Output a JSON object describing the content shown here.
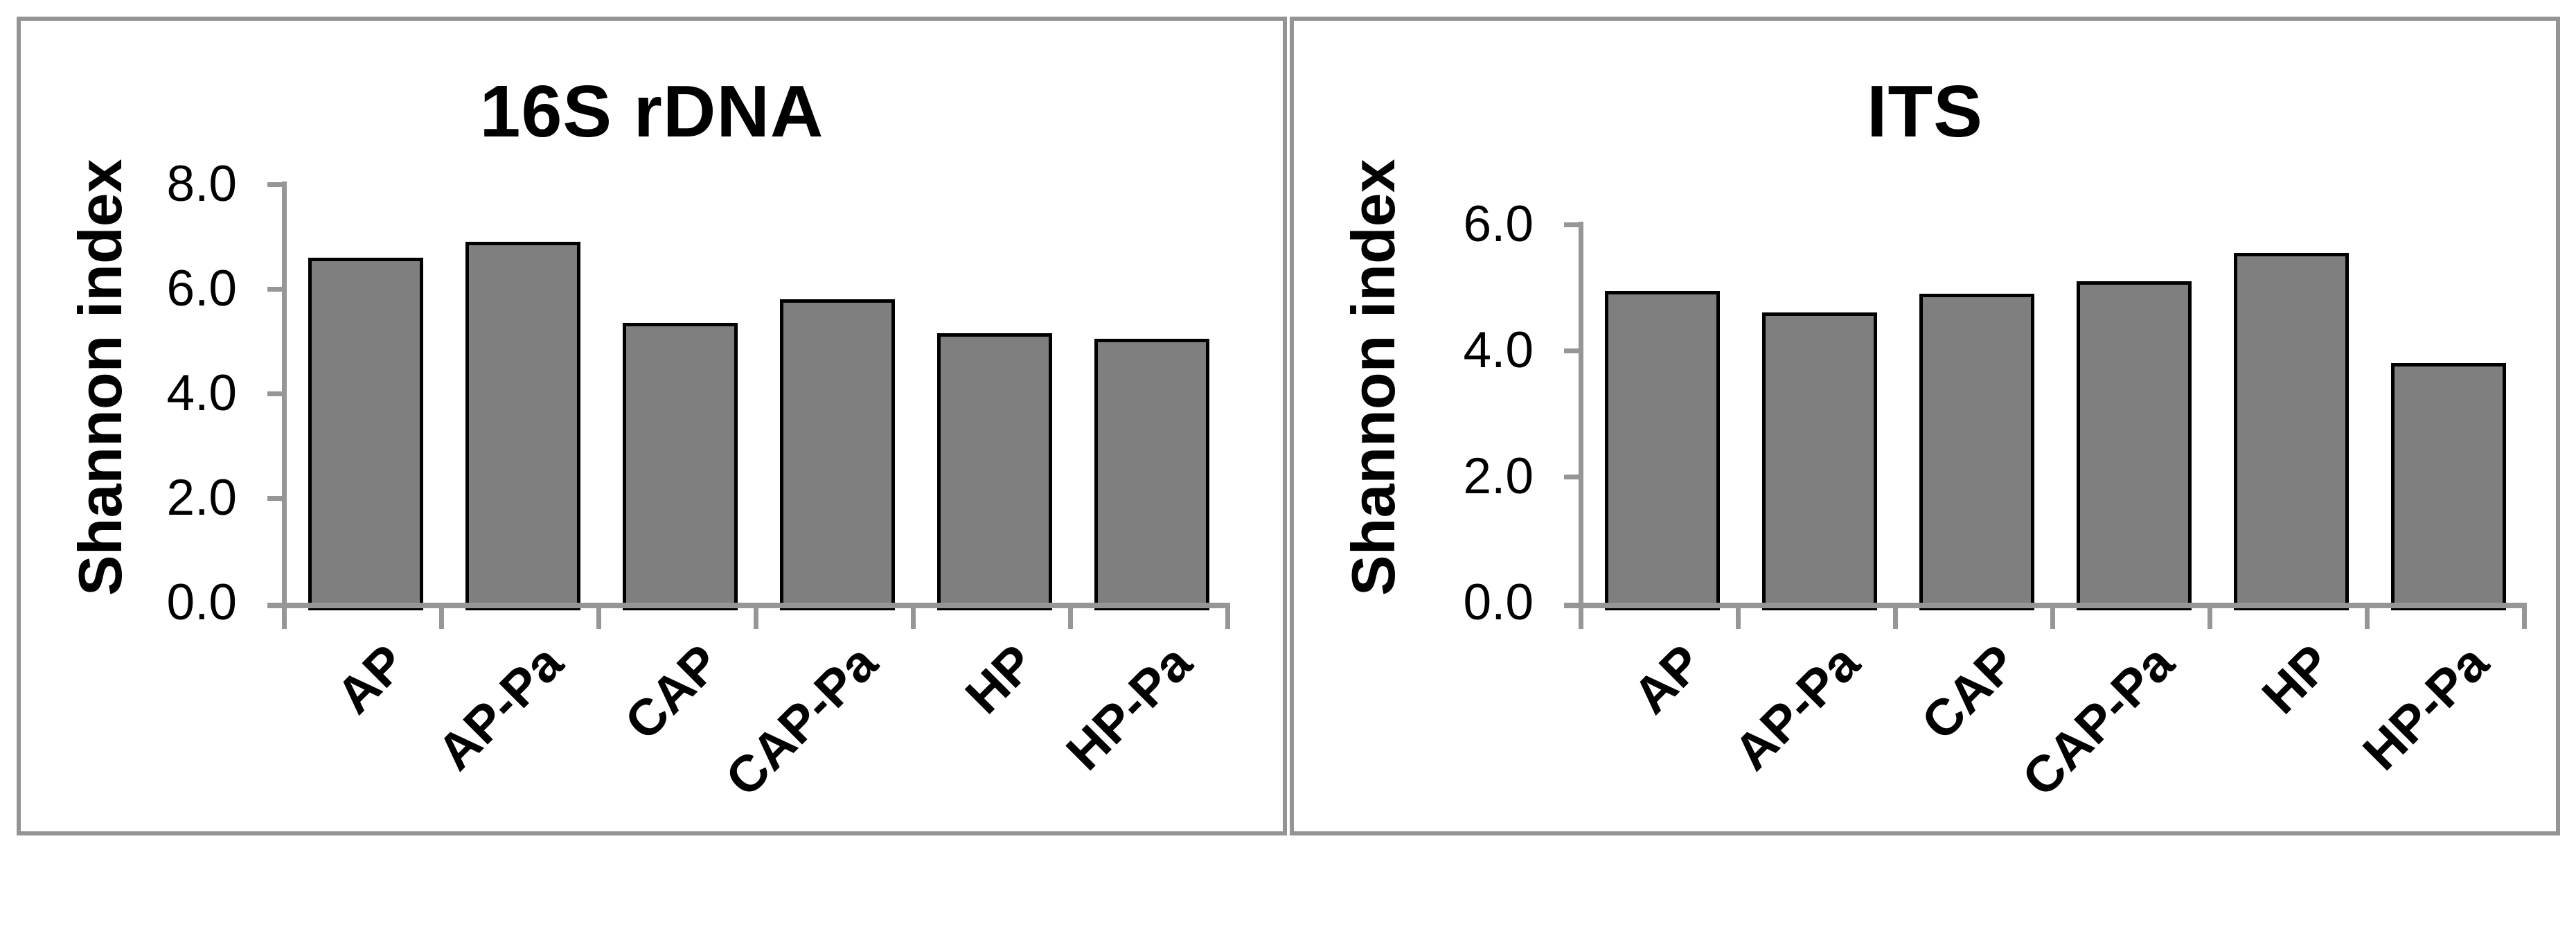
{
  "chart_data": [
    {
      "type": "bar",
      "title": "16S rDNA",
      "ylabel": "Shannon index",
      "xlabel": "",
      "categories": [
        "AP",
        "AP-Pa",
        "CAP",
        "CAP-Pa",
        "HP",
        "HP-Pa"
      ],
      "values": [
        6.6,
        6.9,
        5.35,
        5.8,
        5.15,
        5.05
      ],
      "ylim": [
        0,
        8
      ],
      "ystep": 2,
      "ytick_labels": [
        "8.0",
        "6.0",
        "4.0",
        "2.0",
        "0.0"
      ],
      "grid": false,
      "legend_position": "none"
    },
    {
      "type": "bar",
      "title": "ITS",
      "ylabel": "Shannon index",
      "xlabel": "",
      "categories": [
        "AP",
        "AP-Pa",
        "CAP",
        "CAP-Pa",
        "HP",
        "HP-Pa"
      ],
      "values": [
        4.95,
        4.6,
        4.9,
        5.1,
        5.55,
        3.8
      ],
      "ylim": [
        0,
        6
      ],
      "ystep": 2,
      "ytick_labels": [
        "6.0",
        "4.0",
        "2.0",
        "0.0"
      ],
      "grid": false,
      "legend_position": "none"
    }
  ],
  "colors": {
    "bar_fill": "#7f7f7f",
    "bar_border": "#000000",
    "axis": "#969696",
    "panel_border": "#949494",
    "background": "#ffffff",
    "text": "#000000"
  }
}
